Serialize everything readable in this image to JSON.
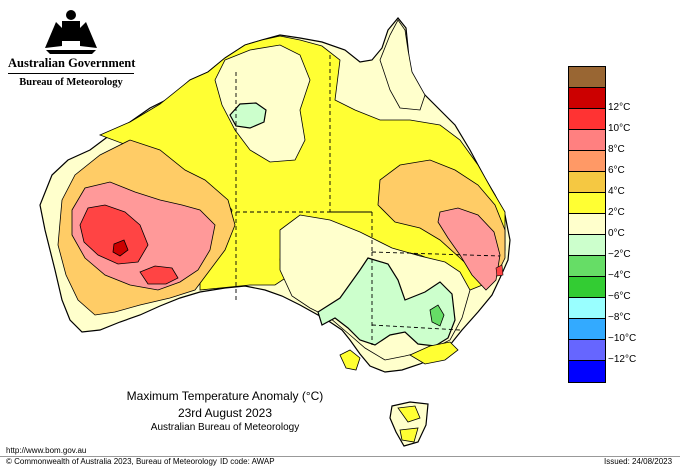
{
  "header": {
    "government": "Australian Government",
    "bureau": "Bureau of Meteorology"
  },
  "map": {
    "title": "Maximum Temperature Anomaly (°C)",
    "date": "23rd August 2023",
    "source": "Australian Bureau of Meteorology"
  },
  "legend": {
    "items": [
      {
        "label": "",
        "color": "#996633"
      },
      {
        "label": "12°C",
        "color": "#cc0000"
      },
      {
        "label": "10°C",
        "color": "#ff3333"
      },
      {
        "label": "8°C",
        "color": "#ff8080"
      },
      {
        "label": "6°C",
        "color": "#ff9966"
      },
      {
        "label": "4°C",
        "color": "#f5c842"
      },
      {
        "label": "2°C",
        "color": "#ffff33"
      },
      {
        "label": "0°C",
        "color": "#ffffcc"
      },
      {
        "label": "−2°C",
        "color": "#ccffcc"
      },
      {
        "label": "−4°C",
        "color": "#66dd66"
      },
      {
        "label": "−6°C",
        "color": "#33cc33"
      },
      {
        "label": "−8°C",
        "color": "#99ffff"
      },
      {
        "label": "−10°C",
        "color": "#33aaff"
      },
      {
        "label": "−12°C",
        "color": "#6666ff"
      },
      {
        "label": "",
        "color": "#0000ff"
      }
    ]
  },
  "footer": {
    "url": "http://www.bom.gov.au",
    "copyright": "© Commonwealth of Australia 2023, Bureau of Meteorology",
    "id_code": "ID code: AWAP",
    "issued": "Issued: 24/08/2023"
  }
}
